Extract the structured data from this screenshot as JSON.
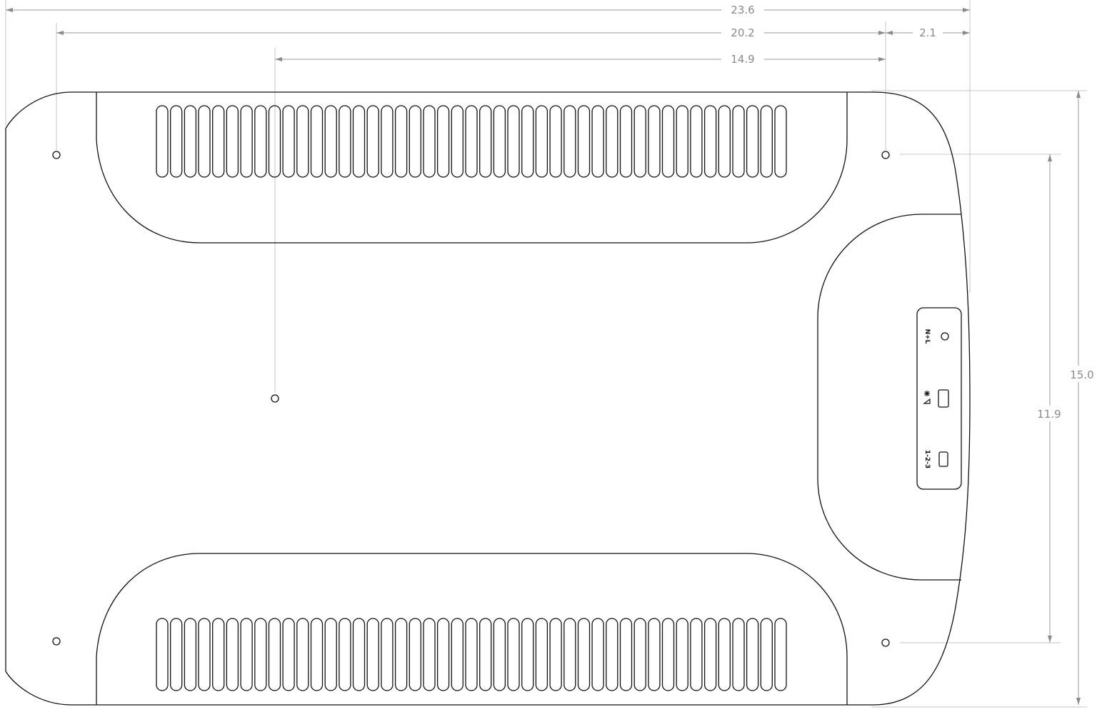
{
  "dimensions": {
    "overall_width": "23.6",
    "hole_spacing_width": "20.2",
    "hole_offset_right": "2.1",
    "center_hole_offset": "14.9",
    "overall_height": "15.0",
    "hole_spacing_height": "11.9"
  },
  "port_panel": {
    "labels": [
      "N+L",
      "",
      "1-2-3"
    ],
    "icons": [
      "power-led-circle-icon",
      "snowflake-signal-icon",
      "selector-switch-icon"
    ]
  },
  "vents": {
    "slots_per_row": 45,
    "rows": 2
  }
}
